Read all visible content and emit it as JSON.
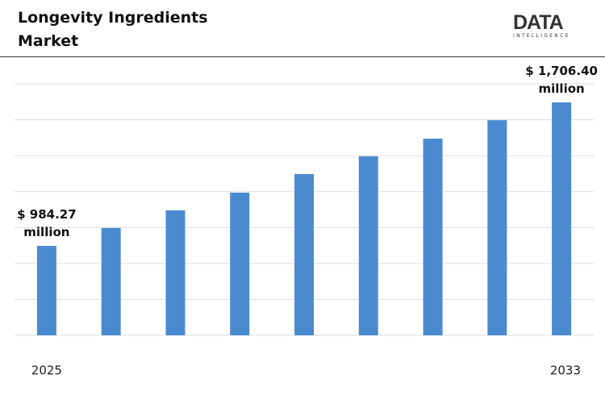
{
  "title": "Longevity Ingredients Market",
  "logo": {
    "name": "DATA",
    "tagline": "INTELLIGENCE"
  },
  "chart_data": {
    "type": "bar",
    "categories": [
      "2025",
      null,
      null,
      null,
      null,
      null,
      null,
      null,
      "2033"
    ],
    "values": [
      984.27,
      1074,
      1163,
      1252,
      1346,
      1435,
      1524,
      1617,
      1706.4
    ],
    "value_labels": [
      "$ 984.27 million",
      null,
      null,
      null,
      null,
      null,
      null,
      null,
      "$ 1,706.40 million"
    ],
    "color": "#4a8bd0",
    "ylim": [
      534,
      1800
    ],
    "grid": true
  }
}
